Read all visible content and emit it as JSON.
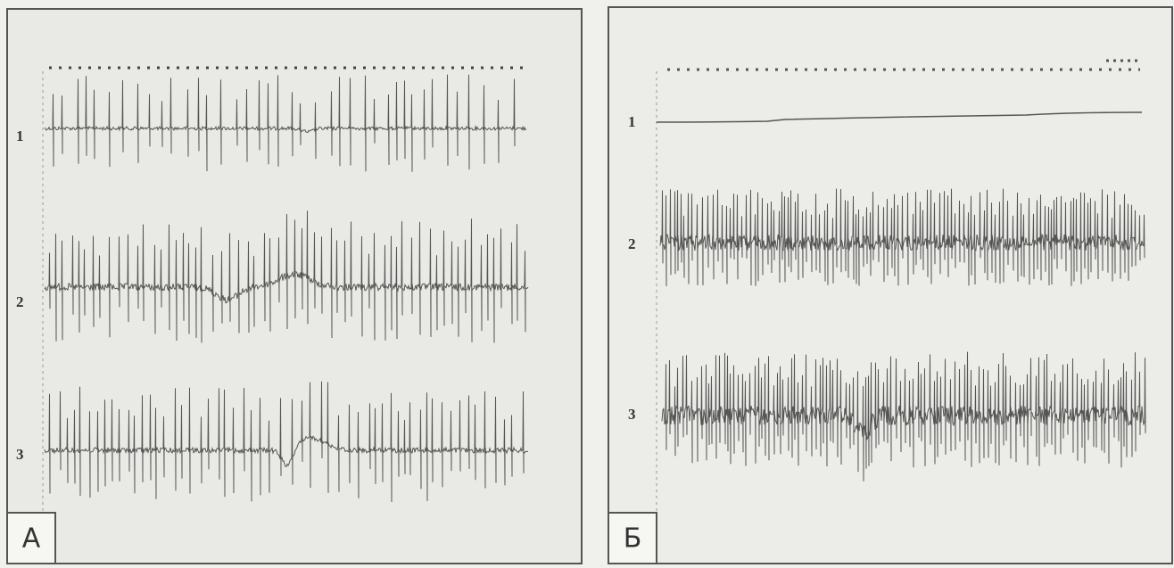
{
  "panels": [
    {
      "label": "А",
      "traces": [
        "1",
        "2",
        "3"
      ]
    },
    {
      "label": "Б",
      "traces": [
        "1",
        "2",
        "3"
      ]
    }
  ]
}
